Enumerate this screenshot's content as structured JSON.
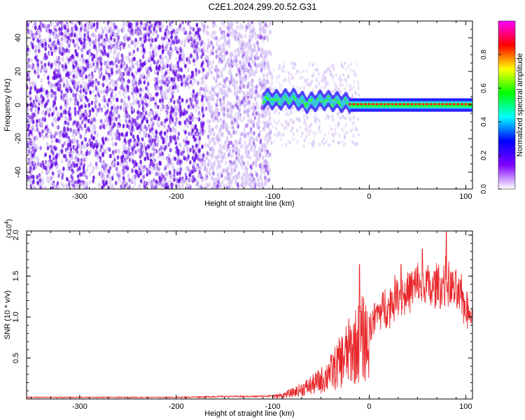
{
  "title": "C2E1.2024.299.20.52.G31",
  "colors": {
    "line": "#e8282b",
    "scatter_light": "#d9c8f6",
    "scatter_dark": "#6a10e6",
    "band_core": "#ff2020",
    "band_mid": "#35e0d6"
  },
  "chart_data": [
    {
      "type": "heatmap",
      "xlabel": "Height of straight line (km)",
      "ylabel": "Frequency (Hz)",
      "xlim": [
        -355,
        107
      ],
      "ylim": [
        -50,
        50
      ],
      "x_ticks": [
        -300,
        -200,
        -100,
        0,
        100
      ],
      "y_ticks": [
        -40,
        -20,
        0,
        20,
        40
      ],
      "grid": false,
      "colorbar": {
        "label": "Normalized spectral amplitude",
        "range": [
          0.0,
          1.0
        ],
        "ticks": [
          0.0,
          0.2,
          0.4,
          0.6,
          0.8
        ],
        "colormap": [
          "#ffffff",
          "#7f00ff",
          "#0000ff",
          "#00ffff",
          "#00ff00",
          "#ffff00",
          "#ff0000",
          "#ff00ff"
        ]
      },
      "features": [
        {
          "x_range": [
            -355,
            -110
          ],
          "freq_range": [
            -50,
            50
          ],
          "amplitude": "scattered 0.1-0.2"
        },
        {
          "x_range": [
            -110,
            -20
          ],
          "freq_range": [
            -8,
            8
          ],
          "amplitude": "0.3-0.6",
          "center_freq": [
            4,
            3,
            4,
            1,
            3,
            2,
            1
          ]
        },
        {
          "x_range": [
            -20,
            107
          ],
          "freq_range": [
            -2,
            2
          ],
          "amplitude": "up to 1.0",
          "center_freq": 0.5
        }
      ]
    },
    {
      "type": "line",
      "xlabel": "Height of straight line (km)",
      "ylabel": "SNR (10 * v/v)",
      "y_multiplier": "(x10",
      "y_multiplier_exp": "4",
      "y_multiplier_close": ")",
      "xlim": [
        -355,
        107
      ],
      "ylim": [
        0,
        2.05
      ],
      "x_ticks": [
        -300,
        -200,
        -100,
        0,
        100
      ],
      "y_ticks": [
        0.5,
        1.0,
        1.5,
        2.0
      ],
      "grid": false,
      "series": [
        {
          "x": [
            -355,
            -300,
            -250,
            -200,
            -150,
            -120,
            -100,
            -90,
            -80,
            -70,
            -60,
            -50,
            -40,
            -30,
            -25,
            -20,
            -15,
            -10,
            -5,
            0,
            5,
            10,
            15,
            20,
            25,
            30,
            35,
            40,
            45,
            50,
            55,
            60,
            65,
            70,
            75,
            80,
            85,
            90,
            95,
            100,
            107
          ],
          "values": [
            0.02,
            0.02,
            0.02,
            0.02,
            0.03,
            0.03,
            0.04,
            0.06,
            0.1,
            0.16,
            0.22,
            0.3,
            0.42,
            0.6,
            0.7,
            0.78,
            0.85,
            0.95,
            1.0,
            0.92,
            1.05,
            1.15,
            1.2,
            1.22,
            1.3,
            1.42,
            1.38,
            1.4,
            1.45,
            1.5,
            1.47,
            1.5,
            1.42,
            1.52,
            1.48,
            1.55,
            1.45,
            1.4,
            1.35,
            1.2,
            1.15
          ],
          "spikes": [
            [
              -10,
              1.64
            ],
            [
              0,
              1.0
            ],
            [
              80,
              2.05
            ],
            [
              55,
              1.83
            ],
            [
              33,
              1.64
            ],
            [
              -42,
              0.42
            ]
          ]
        }
      ]
    }
  ]
}
